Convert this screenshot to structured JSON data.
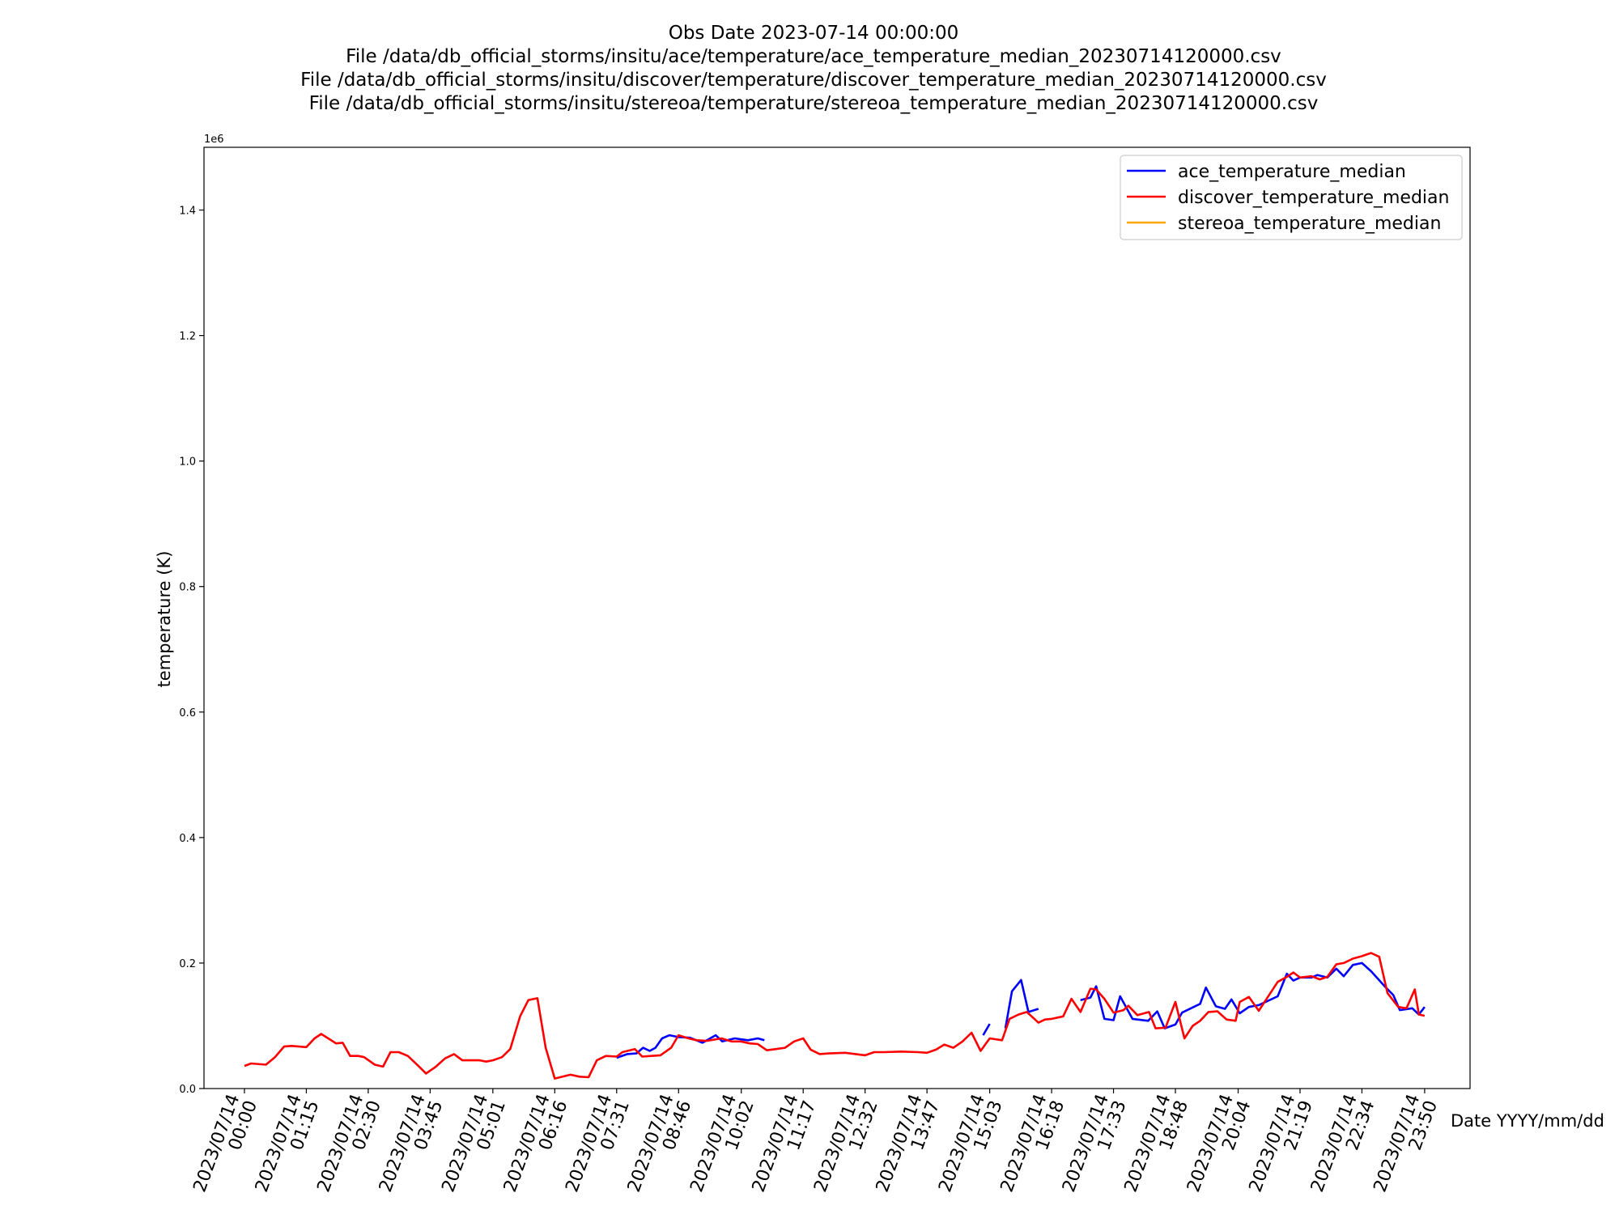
{
  "chart_data": {
    "type": "line",
    "title": [
      "Obs Date 2023-07-14 00:00:00",
      "File /data/db_official_storms/insitu/ace/temperature/ace_temperature_median_20230714120000.csv",
      "File /data/db_official_storms/insitu/discover/temperature/discover_temperature_median_20230714120000.csv",
      "File /data/db_official_storms/insitu/stereoa/temperature/stereoa_temperature_median_20230714120000.csv"
    ],
    "xlabel": "Date YYYY/mm/dd",
    "ylabel": "temperature (K)",
    "y_offset_text": "1e6",
    "ylim": [
      0,
      1500000
    ],
    "y_ticks": [
      0,
      200000,
      400000,
      600000,
      800000,
      1000000,
      1200000,
      1400000
    ],
    "y_tick_labels": [
      "0.0",
      "0.2",
      "0.4",
      "0.6",
      "0.8",
      "1.0",
      "1.2",
      "1.4"
    ],
    "xlim": [
      "2023/07/13 23:11",
      "2023/07/15 00:45"
    ],
    "x_ticks": [
      "2023/07/14 00:00",
      "2023/07/14 01:15",
      "2023/07/14 02:30",
      "2023/07/14 03:45",
      "2023/07/14 05:01",
      "2023/07/14 06:16",
      "2023/07/14 07:31",
      "2023/07/14 08:46",
      "2023/07/14 10:02",
      "2023/07/14 11:17",
      "2023/07/14 12:32",
      "2023/07/14 13:47",
      "2023/07/14 15:03",
      "2023/07/14 16:18",
      "2023/07/14 17:33",
      "2023/07/14 18:48",
      "2023/07/14 20:04",
      "2023/07/14 21:19",
      "2023/07/14 22:34",
      "2023/07/14 23:50"
    ],
    "x_tick_labels": [
      [
        "2023/07/14",
        "00:00"
      ],
      [
        "2023/07/14",
        "01:15"
      ],
      [
        "2023/07/14",
        "02:30"
      ],
      [
        "2023/07/14",
        "03:45"
      ],
      [
        "2023/07/14",
        "05:01"
      ],
      [
        "2023/07/14",
        "06:16"
      ],
      [
        "2023/07/14",
        "07:31"
      ],
      [
        "2023/07/14",
        "08:46"
      ],
      [
        "2023/07/14",
        "10:02"
      ],
      [
        "2023/07/14",
        "11:17"
      ],
      [
        "2023/07/14",
        "12:32"
      ],
      [
        "2023/07/14",
        "13:47"
      ],
      [
        "2023/07/14",
        "15:03"
      ],
      [
        "2023/07/14",
        "16:18"
      ],
      [
        "2023/07/14",
        "17:33"
      ],
      [
        "2023/07/14",
        "18:48"
      ],
      [
        "2023/07/14",
        "20:04"
      ],
      [
        "2023/07/14",
        "21:19"
      ],
      [
        "2023/07/14",
        "22:34"
      ],
      [
        "2023/07/14",
        "23:50"
      ]
    ],
    "grid": false,
    "legend_position": "top-right",
    "series": [
      {
        "name": "ace_temperature_median",
        "color": "#0000ff",
        "segments": [
          [
            [
              "2023/07/14 07:31",
              49000
            ],
            [
              "2023/07/14 07:44",
              55000
            ],
            [
              "2023/07/14 07:55",
              56000
            ],
            [
              "2023/07/14 08:03",
              65000
            ],
            [
              "2023/07/14 08:11",
              60000
            ],
            [
              "2023/07/14 08:18",
              65000
            ],
            [
              "2023/07/14 08:26",
              80000
            ],
            [
              "2023/07/14 08:35",
              85000
            ],
            [
              "2023/07/14 08:46",
              82000
            ],
            [
              "2023/07/14 09:00",
              81000
            ],
            [
              "2023/07/14 09:15",
              73000
            ],
            [
              "2023/07/14 09:31",
              85000
            ],
            [
              "2023/07/14 09:39",
              75000
            ],
            [
              "2023/07/14 09:54",
              80000
            ],
            [
              "2023/07/14 10:10",
              77000
            ],
            [
              "2023/07/14 10:22",
              80000
            ],
            [
              "2023/07/14 10:30",
              77000
            ]
          ],
          [
            [
              "2023/07/14 14:55",
              85000
            ],
            [
              "2023/07/14 15:03",
              103000
            ]
          ],
          [
            [
              "2023/07/14 15:22",
              96000
            ],
            [
              "2023/07/14 15:30",
              155000
            ],
            [
              "2023/07/14 15:41",
              173000
            ],
            [
              "2023/07/14 15:50",
              122000
            ],
            [
              "2023/07/14 16:02",
              127000
            ]
          ],
          [
            [
              "2023/07/14 16:53",
              141000
            ],
            [
              "2023/07/14 17:05",
              145000
            ],
            [
              "2023/07/14 17:12",
              163000
            ],
            [
              "2023/07/14 17:22",
              111000
            ],
            [
              "2023/07/14 17:33",
              109000
            ],
            [
              "2023/07/14 17:41",
              147000
            ],
            [
              "2023/07/14 17:56",
              111000
            ],
            [
              "2023/07/14 18:15",
              108000
            ],
            [
              "2023/07/14 18:26",
              123000
            ],
            [
              "2023/07/14 18:35",
              96000
            ],
            [
              "2023/07/14 18:48",
              102000
            ],
            [
              "2023/07/14 18:56",
              121000
            ],
            [
              "2023/07/14 19:18",
              135000
            ],
            [
              "2023/07/14 19:25",
              161000
            ],
            [
              "2023/07/14 19:37",
              131000
            ],
            [
              "2023/07/14 19:48",
              127000
            ],
            [
              "2023/07/14 19:56",
              142000
            ],
            [
              "2023/07/14 20:06",
              120000
            ],
            [
              "2023/07/14 20:17",
              130000
            ],
            [
              "2023/07/14 20:29",
              133000
            ],
            [
              "2023/07/14 20:52",
              147000
            ],
            [
              "2023/07/14 21:03",
              183000
            ],
            [
              "2023/07/14 21:11",
              172000
            ],
            [
              "2023/07/14 21:19",
              177000
            ],
            [
              "2023/07/14 21:33",
              177000
            ],
            [
              "2023/07/14 21:40",
              181000
            ],
            [
              "2023/07/14 21:52",
              177000
            ],
            [
              "2023/07/14 22:03",
              191000
            ],
            [
              "2023/07/14 22:12",
              179000
            ],
            [
              "2023/07/14 22:23",
              197000
            ],
            [
              "2023/07/14 22:34",
              200000
            ],
            [
              "2023/07/14 22:45",
              187000
            ],
            [
              "2023/07/14 23:03",
              161000
            ],
            [
              "2023/07/14 23:12",
              149000
            ],
            [
              "2023/07/14 23:20",
              125000
            ],
            [
              "2023/07/14 23:35",
              128000
            ],
            [
              "2023/07/14 23:43",
              118000
            ],
            [
              "2023/07/14 23:50",
              130000
            ]
          ]
        ]
      },
      {
        "name": "discover_temperature_median",
        "color": "#ff0000",
        "segments": [
          [
            [
              "2023/07/14 00:00",
              36000
            ],
            [
              "2023/07/14 00:08",
              40000
            ],
            [
              "2023/07/14 00:26",
              38000
            ],
            [
              "2023/07/14 00:37",
              50000
            ],
            [
              "2023/07/14 00:48",
              67000
            ],
            [
              "2023/07/14 00:57",
              68000
            ],
            [
              "2023/07/14 01:15",
              66000
            ],
            [
              "2023/07/14 01:25",
              80000
            ],
            [
              "2023/07/14 01:33",
              87000
            ],
            [
              "2023/07/14 01:51",
              72000
            ],
            [
              "2023/07/14 01:59",
              73000
            ],
            [
              "2023/07/14 02:08",
              52000
            ],
            [
              "2023/07/14 02:18",
              52000
            ],
            [
              "2023/07/14 02:25",
              50000
            ],
            [
              "2023/07/14 02:38",
              38000
            ],
            [
              "2023/07/14 02:48",
              35000
            ],
            [
              "2023/07/14 02:57",
              58000
            ],
            [
              "2023/07/14 03:07",
              58000
            ],
            [
              "2023/07/14 03:18",
              52000
            ],
            [
              "2023/07/14 03:30",
              37000
            ],
            [
              "2023/07/14 03:40",
              24000
            ],
            [
              "2023/07/14 03:52",
              35000
            ],
            [
              "2023/07/14 04:03",
              48000
            ],
            [
              "2023/07/14 04:14",
              55000
            ],
            [
              "2023/07/14 04:24",
              45000
            ],
            [
              "2023/07/14 04:45",
              45000
            ],
            [
              "2023/07/14 04:53",
              43000
            ],
            [
              "2023/07/14 05:01",
              45000
            ],
            [
              "2023/07/14 05:12",
              50000
            ],
            [
              "2023/07/14 05:22",
              63000
            ],
            [
              "2023/07/14 05:34",
              115000
            ],
            [
              "2023/07/14 05:44",
              141000
            ],
            [
              "2023/07/14 05:55",
              144000
            ],
            [
              "2023/07/14 06:05",
              65000
            ],
            [
              "2023/07/14 06:16",
              16000
            ],
            [
              "2023/07/14 06:35",
              22000
            ],
            [
              "2023/07/14 06:46",
              19000
            ],
            [
              "2023/07/14 06:57",
              18000
            ],
            [
              "2023/07/14 07:07",
              45000
            ],
            [
              "2023/07/14 07:18",
              52000
            ],
            [
              "2023/07/14 07:31",
              51000
            ],
            [
              "2023/07/14 07:38",
              58000
            ],
            [
              "2023/07/14 07:53",
              63000
            ],
            [
              "2023/07/14 08:02",
              51000
            ],
            [
              "2023/07/14 08:13",
              52000
            ],
            [
              "2023/07/14 08:24",
              53000
            ],
            [
              "2023/07/14 08:37",
              65000
            ],
            [
              "2023/07/14 08:46",
              85000
            ],
            [
              "2023/07/14 08:58",
              80000
            ],
            [
              "2023/07/14 09:08",
              77000
            ],
            [
              "2023/07/14 09:20",
              76000
            ],
            [
              "2023/07/14 09:38",
              80000
            ],
            [
              "2023/07/14 09:50",
              75000
            ],
            [
              "2023/07/14 10:02",
              75000
            ],
            [
              "2023/07/14 10:12",
              72000
            ],
            [
              "2023/07/14 10:22",
              71000
            ],
            [
              "2023/07/14 10:33",
              61000
            ],
            [
              "2023/07/14 10:44",
              63000
            ],
            [
              "2023/07/14 10:55",
              65000
            ],
            [
              "2023/07/14 11:06",
              75000
            ],
            [
              "2023/07/14 11:17",
              80000
            ],
            [
              "2023/07/14 11:26",
              62000
            ],
            [
              "2023/07/14 11:37",
              55000
            ],
            [
              "2023/07/14 11:48",
              56000
            ],
            [
              "2023/07/14 12:08",
              57000
            ],
            [
              "2023/07/14 12:32",
              53000
            ],
            [
              "2023/07/14 12:43",
              58000
            ],
            [
              "2023/07/14 12:55",
              58000
            ],
            [
              "2023/07/14 13:16",
              59000
            ],
            [
              "2023/07/14 13:36",
              58000
            ],
            [
              "2023/07/14 13:47",
              57000
            ],
            [
              "2023/07/14 13:58",
              62000
            ],
            [
              "2023/07/14 14:08",
              70000
            ],
            [
              "2023/07/14 14:19",
              65000
            ],
            [
              "2023/07/14 14:30",
              75000
            ],
            [
              "2023/07/14 14:41",
              89000
            ],
            [
              "2023/07/14 14:52",
              60000
            ],
            [
              "2023/07/14 15:03",
              80000
            ],
            [
              "2023/07/14 15:18",
              77000
            ],
            [
              "2023/07/14 15:27",
              111000
            ],
            [
              "2023/07/14 15:38",
              118000
            ],
            [
              "2023/07/14 15:48",
              122000
            ],
            [
              "2023/07/14 16:02",
              105000
            ],
            [
              "2023/07/14 16:10",
              110000
            ],
            [
              "2023/07/14 16:18",
              111000
            ],
            [
              "2023/07/14 16:32",
              115000
            ],
            [
              "2023/07/14 16:42",
              143000
            ],
            [
              "2023/07/14 16:53",
              122000
            ],
            [
              "2023/07/14 17:05",
              159000
            ],
            [
              "2023/07/14 17:12",
              158000
            ],
            [
              "2023/07/14 17:22",
              143000
            ],
            [
              "2023/07/14 17:33",
              121000
            ],
            [
              "2023/07/14 17:45",
              125000
            ],
            [
              "2023/07/14 17:51",
              132000
            ],
            [
              "2023/07/14 18:02",
              117000
            ],
            [
              "2023/07/14 18:16",
              122000
            ],
            [
              "2023/07/14 18:24",
              96000
            ],
            [
              "2023/07/14 18:36",
              97000
            ],
            [
              "2023/07/14 18:48",
              138000
            ],
            [
              "2023/07/14 18:59",
              80000
            ],
            [
              "2023/07/14 19:09",
              100000
            ],
            [
              "2023/07/14 19:18",
              108000
            ],
            [
              "2023/07/14 19:28",
              122000
            ],
            [
              "2023/07/14 19:39",
              123000
            ],
            [
              "2023/07/14 19:50",
              110000
            ],
            [
              "2023/07/14 20:01",
              108000
            ],
            [
              "2023/07/14 20:06",
              138000
            ],
            [
              "2023/07/14 20:17",
              146000
            ],
            [
              "2023/07/14 20:29",
              124000
            ],
            [
              "2023/07/14 20:41",
              148000
            ],
            [
              "2023/07/14 20:52",
              170000
            ],
            [
              "2023/07/14 21:03",
              178000
            ],
            [
              "2023/07/14 21:11",
              185000
            ],
            [
              "2023/07/14 21:19",
              177000
            ],
            [
              "2023/07/14 21:33",
              179000
            ],
            [
              "2023/07/14 21:43",
              174000
            ],
            [
              "2023/07/14 21:52",
              178000
            ],
            [
              "2023/07/14 22:03",
              198000
            ],
            [
              "2023/07/14 22:12",
              200000
            ],
            [
              "2023/07/14 22:23",
              207000
            ],
            [
              "2023/07/14 22:34",
              211000
            ],
            [
              "2023/07/14 22:45",
              216000
            ],
            [
              "2023/07/14 22:55",
              210000
            ],
            [
              "2023/07/14 23:05",
              152000
            ],
            [
              "2023/07/14 23:18",
              130000
            ],
            [
              "2023/07/14 23:28",
              128000
            ],
            [
              "2023/07/14 23:38",
              158000
            ],
            [
              "2023/07/14 23:43",
              118000
            ],
            [
              "2023/07/14 23:50",
              116000
            ]
          ]
        ]
      },
      {
        "name": "stereoa_temperature_median",
        "color": "#ffa500",
        "segments": []
      }
    ]
  }
}
